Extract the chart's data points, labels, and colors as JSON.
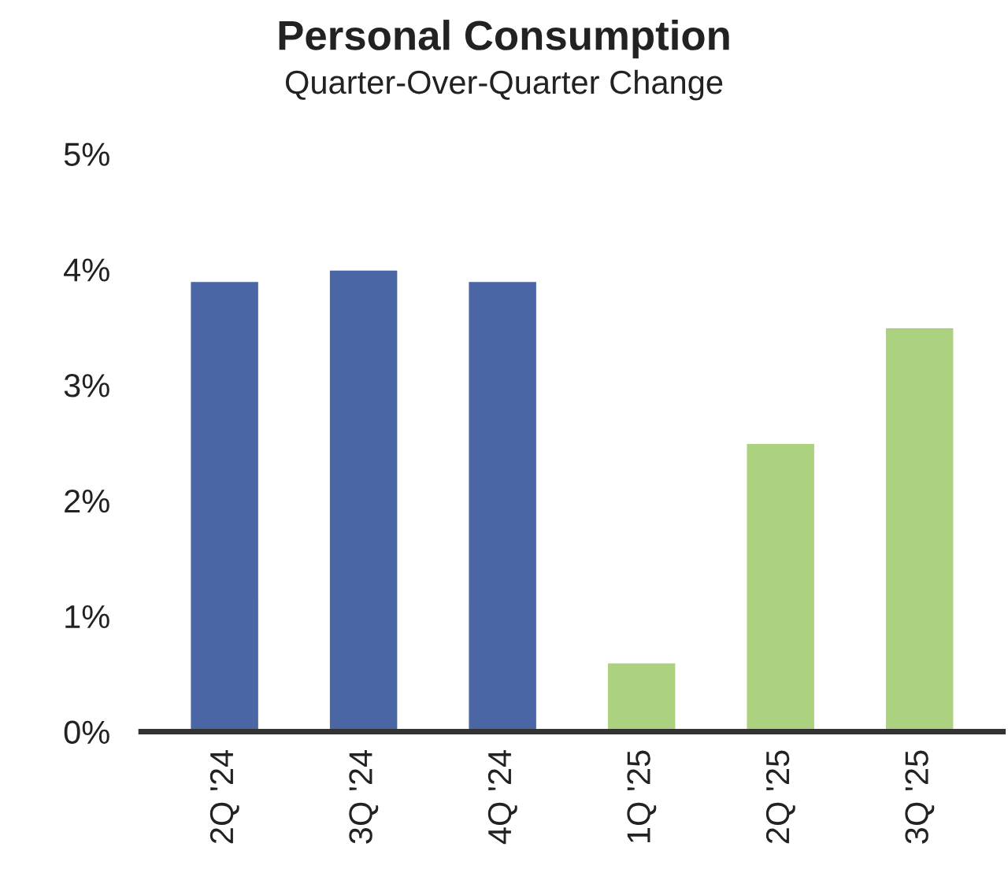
{
  "chart_data": {
    "type": "bar",
    "title": "Personal Consumption",
    "subtitle": "Quarter-Over-Quarter Change",
    "categories": [
      "2Q '24",
      "3Q '24",
      "4Q '24",
      "1Q '25",
      "2Q '25",
      "3Q '25"
    ],
    "values": [
      3.9,
      4.0,
      3.9,
      0.6,
      2.5,
      3.5
    ],
    "colors": [
      "#4a66a5",
      "#4a66a5",
      "#4a66a5",
      "#acd27f",
      "#acd27f",
      "#acd27f"
    ],
    "ylim": [
      0,
      5
    ],
    "yticks": [
      {
        "value": 0,
        "label": "0%"
      },
      {
        "value": 1,
        "label": "1%"
      },
      {
        "value": 2,
        "label": "2%"
      },
      {
        "value": 3,
        "label": "3%"
      },
      {
        "value": 4,
        "label": "4%"
      },
      {
        "value": 5,
        "label": "5%"
      }
    ],
    "grid": false,
    "legend": false
  }
}
